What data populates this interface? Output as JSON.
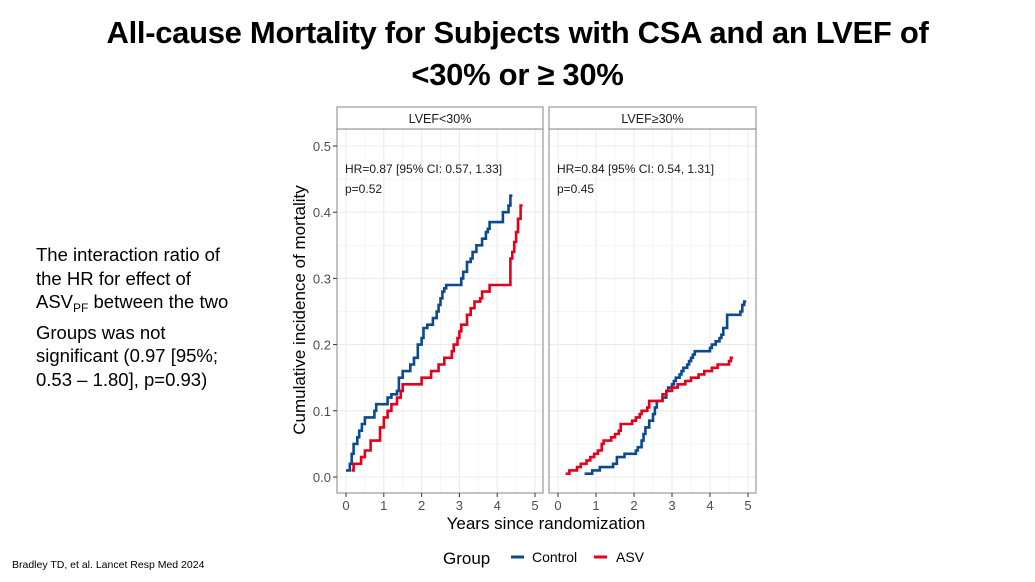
{
  "slide": {
    "title_line1": "All-cause Mortality for Subjects with CSA and an LVEF of",
    "title_line2": "<30% or ≥ 30%",
    "side_note": {
      "line1": "The interaction ratio of",
      "line2": "the HR for effect of",
      "line3_main": "ASV",
      "line3_sub": "PF",
      "line3_rest": " between the two",
      "line4": "Groups was not",
      "line5": "significant (0.97 [95%;",
      "line6": "0.53 – 1.80], p=0.93)"
    },
    "citation": "Bradley TD, et al. Lancet Resp Med 2024"
  },
  "chart_data": {
    "type": "line",
    "subtype": "step",
    "xlabel": "Years since randomization",
    "ylabel": "Cumulative incidence of mortality",
    "xlim": [
      -0.2,
      5.2
    ],
    "ylim": [
      -0.02,
      0.52
    ],
    "xticks": [
      0,
      1,
      2,
      3,
      4,
      5
    ],
    "yticks": [
      0.0,
      0.1,
      0.2,
      0.3,
      0.4,
      0.5
    ],
    "ytick_labels": [
      "0.0",
      "0.1",
      "0.2",
      "0.3",
      "0.4",
      "0.5"
    ],
    "grid": true,
    "legend": {
      "title": "Group",
      "position": "bottom",
      "entries": [
        {
          "name": "Control",
          "color": "#0b4a8f"
        },
        {
          "name": "ASV",
          "color": "#e3001b"
        }
      ]
    },
    "panels": [
      {
        "strip": "LVEF<30%",
        "annotation_line1": "HR=0.87 [95% CI: 0.57, 1.33]",
        "annotation_line2": "p=0.52",
        "series": [
          {
            "name": "Control",
            "color": "#0b4a8f",
            "x": [
              0.0,
              0.1,
              0.15,
              0.2,
              0.3,
              0.35,
              0.42,
              0.5,
              0.75,
              0.8,
              1.1,
              1.2,
              1.35,
              1.4,
              1.5,
              1.55,
              1.7,
              1.8,
              1.9,
              2.0,
              2.05,
              2.15,
              2.3,
              2.4,
              2.45,
              2.5,
              2.55,
              2.6,
              2.65,
              2.7,
              3.05,
              3.1,
              3.2,
              3.3,
              3.35,
              3.45,
              3.5,
              3.6,
              3.7,
              3.75,
              3.8,
              3.9,
              4.15,
              4.3,
              4.35
            ],
            "y": [
              0.01,
              0.02,
              0.035,
              0.05,
              0.06,
              0.07,
              0.08,
              0.09,
              0.1,
              0.11,
              0.12,
              0.125,
              0.13,
              0.15,
              0.16,
              0.16,
              0.17,
              0.18,
              0.2,
              0.21,
              0.225,
              0.23,
              0.24,
              0.25,
              0.26,
              0.27,
              0.28,
              0.285,
              0.29,
              0.29,
              0.3,
              0.31,
              0.325,
              0.33,
              0.34,
              0.35,
              0.35,
              0.36,
              0.37,
              0.375,
              0.385,
              0.385,
              0.4,
              0.41,
              0.425
            ]
          },
          {
            "name": "ASV",
            "color": "#e3001b",
            "x": [
              0.15,
              0.2,
              0.4,
              0.5,
              0.65,
              0.9,
              1.0,
              1.1,
              1.2,
              1.35,
              1.45,
              1.5,
              1.8,
              2.0,
              2.25,
              2.45,
              2.6,
              2.8,
              2.85,
              2.95,
              3.0,
              3.05,
              3.2,
              3.3,
              3.4,
              3.55,
              3.6,
              3.8,
              4.35,
              4.4,
              4.45,
              4.5,
              4.55,
              4.62
            ],
            "y": [
              0.01,
              0.02,
              0.03,
              0.04,
              0.055,
              0.075,
              0.09,
              0.1,
              0.11,
              0.12,
              0.13,
              0.14,
              0.14,
              0.15,
              0.16,
              0.17,
              0.18,
              0.19,
              0.2,
              0.21,
              0.22,
              0.23,
              0.245,
              0.255,
              0.265,
              0.27,
              0.28,
              0.29,
              0.33,
              0.34,
              0.355,
              0.37,
              0.39,
              0.41
            ]
          }
        ]
      },
      {
        "strip": "LVEF≥30%",
        "annotation_line1": "HR=0.84 [95% CI: 0.54, 1.31]",
        "annotation_line2": "p=0.45",
        "series": [
          {
            "name": "Control",
            "color": "#0b4a8f",
            "x": [
              0.7,
              0.9,
              1.1,
              1.45,
              1.55,
              1.75,
              2.05,
              2.1,
              2.2,
              2.25,
              2.3,
              2.4,
              2.5,
              2.55,
              2.6,
              2.75,
              2.85,
              2.9,
              3.0,
              3.05,
              3.1,
              3.2,
              3.25,
              3.3,
              3.4,
              3.45,
              3.5,
              3.55,
              3.6,
              3.8,
              4.0,
              4.05,
              4.15,
              4.25,
              4.3,
              4.35,
              4.45,
              4.7,
              4.8,
              4.85,
              4.9
            ],
            "y": [
              0.005,
              0.01,
              0.015,
              0.02,
              0.03,
              0.035,
              0.04,
              0.045,
              0.055,
              0.065,
              0.075,
              0.085,
              0.095,
              0.105,
              0.115,
              0.12,
              0.13,
              0.135,
              0.14,
              0.145,
              0.15,
              0.155,
              0.16,
              0.165,
              0.17,
              0.175,
              0.18,
              0.185,
              0.19,
              0.19,
              0.195,
              0.2,
              0.205,
              0.21,
              0.215,
              0.225,
              0.245,
              0.245,
              0.25,
              0.26,
              0.265
            ]
          },
          {
            "name": "ASV",
            "color": "#e3001b",
            "x": [
              0.2,
              0.3,
              0.5,
              0.6,
              0.75,
              0.85,
              0.95,
              1.05,
              1.15,
              1.2,
              1.4,
              1.5,
              1.6,
              1.65,
              1.95,
              2.05,
              2.15,
              2.2,
              2.35,
              2.4,
              2.75,
              2.85,
              3.0,
              3.15,
              3.35,
              3.5,
              3.7,
              3.85,
              4.05,
              4.2,
              4.5,
              4.55
            ],
            "y": [
              0.005,
              0.01,
              0.015,
              0.02,
              0.025,
              0.03,
              0.035,
              0.04,
              0.05,
              0.055,
              0.06,
              0.065,
              0.07,
              0.08,
              0.085,
              0.09,
              0.095,
              0.1,
              0.105,
              0.115,
              0.125,
              0.13,
              0.135,
              0.14,
              0.145,
              0.15,
              0.155,
              0.16,
              0.165,
              0.17,
              0.175,
              0.18
            ]
          }
        ]
      }
    ]
  }
}
